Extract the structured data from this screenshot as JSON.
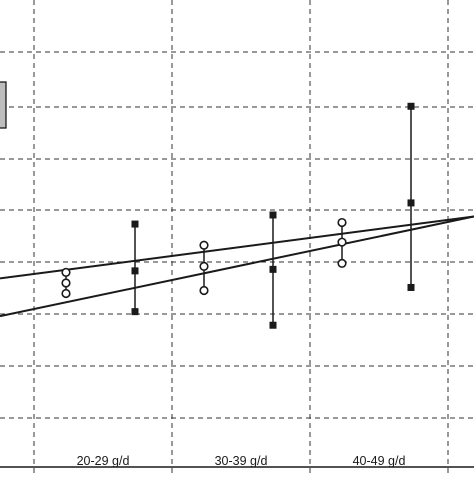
{
  "chart_data": {
    "type": "scatter",
    "title": "",
    "xlabel": "",
    "ylabel": "",
    "categories": [
      "20-29 g/d",
      "30-39 g/d",
      "40-49 g/d"
    ],
    "grid": true,
    "series": [
      {
        "marker": "open-circle",
        "color": "#1a1a1a",
        "points": [
          {
            "category": "20-29 g/d",
            "mean": 5.5,
            "upper": 6.2,
            "lower": 4.8
          },
          {
            "category": "30-39 g/d",
            "mean": 6.6,
            "upper": 8.0,
            "lower": 5.0
          },
          {
            "category": "40-49 g/d",
            "mean": 8.2,
            "upper": 9.5,
            "lower": 6.8
          }
        ]
      },
      {
        "marker": "filled-square",
        "color": "#1a1a1a",
        "points": [
          {
            "category": "20-29 g/d",
            "mean": 6.3,
            "upper": 9.4,
            "lower": 3.6
          },
          {
            "category": "30-39 g/d",
            "mean": 6.4,
            "upper": 10.0,
            "lower": 2.7
          },
          {
            "category": "40-49 g/d",
            "mean": 10.8,
            "upper": 17.2,
            "lower": 5.2
          }
        ]
      }
    ],
    "trend_lines": [
      {
        "from": {
          "category": "below-20",
          "value": 5.8
        },
        "to": {
          "category": "above-49",
          "value": 9.9
        }
      },
      {
        "from": {
          "category": "below-20",
          "value": 3.3
        },
        "to": {
          "category": "above-49",
          "value": 9.9
        }
      }
    ]
  }
}
